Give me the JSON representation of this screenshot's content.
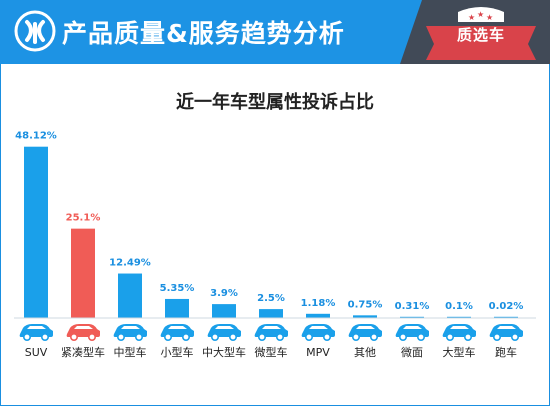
{
  "header": {
    "title": "产品质量&服务趋势分析",
    "badge_text": "质选车",
    "accent_color": "#1d93e4",
    "panel_color": "#414a57",
    "badge_color": "#d9434a"
  },
  "chart_data": {
    "type": "bar",
    "title": "近一年车型属性投诉占比",
    "categories": [
      "SUV",
      "紧凑型车",
      "中型车",
      "小型车",
      "中大型车",
      "微型车",
      "MPV",
      "其他",
      "微面",
      "大型车",
      "跑车"
    ],
    "values": [
      48.12,
      25.1,
      12.49,
      5.35,
      3.9,
      2.5,
      1.18,
      0.75,
      0.31,
      0.1,
      0.02
    ],
    "value_labels": [
      "48.12%",
      "25.1%",
      "12.49%",
      "5.35%",
      "3.9%",
      "2.5%",
      "1.18%",
      "0.75%",
      "0.31%",
      "0.1%",
      "0.02%"
    ],
    "highlight_index": 1,
    "bar_color": "#1aa0ea",
    "highlight_color": "#f05c56",
    "label_color": "#1a8fe0",
    "icon_names": [
      "car-icon"
    ],
    "ylim": [
      0,
      50
    ]
  }
}
